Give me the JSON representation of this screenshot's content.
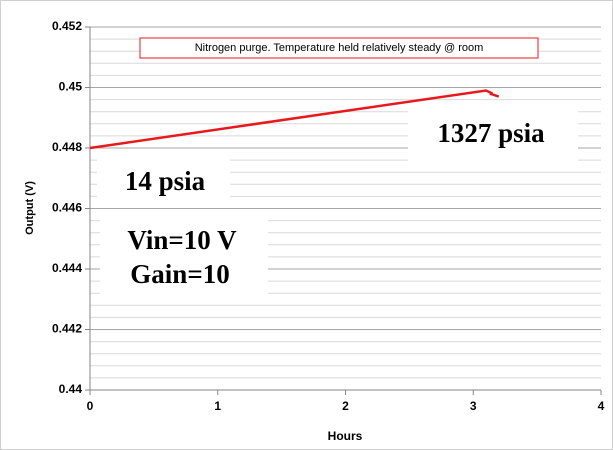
{
  "chart_data": {
    "type": "line",
    "annotations": [
      "Nitrogen purge.  Temperature held relatively steady @ room",
      "1327 psia",
      "14 psia",
      "Vin=10 V",
      "Gain=10"
    ],
    "xlabel": "Hours",
    "ylabel": "Output (V)",
    "series": [
      {
        "name": "Output",
        "color": "#e8191c",
        "x": [
          0,
          3.1,
          3.15,
          3.13,
          3.2
        ],
        "values": [
          0.448,
          0.4499,
          0.4498,
          0.4498,
          0.4497
        ]
      }
    ],
    "xlim": [
      0,
      4
    ],
    "xticks": [
      0,
      1,
      2,
      3,
      4
    ],
    "ylim": [
      0.44,
      0.452
    ],
    "yticks": [
      0.44,
      0.442,
      0.444,
      0.446,
      0.448,
      0.45,
      0.452
    ],
    "minor_yticks": [
      0.4404,
      0.4408,
      0.4412,
      0.4416,
      0.4424,
      0.4428,
      0.4432,
      0.4436,
      0.4444,
      0.4448,
      0.4452,
      0.4456,
      0.4464,
      0.4468,
      0.4472,
      0.4476,
      0.4484,
      0.4488,
      0.4492,
      0.4496,
      0.4504,
      0.4508,
      0.4512,
      0.4516
    ],
    "grid": true
  }
}
